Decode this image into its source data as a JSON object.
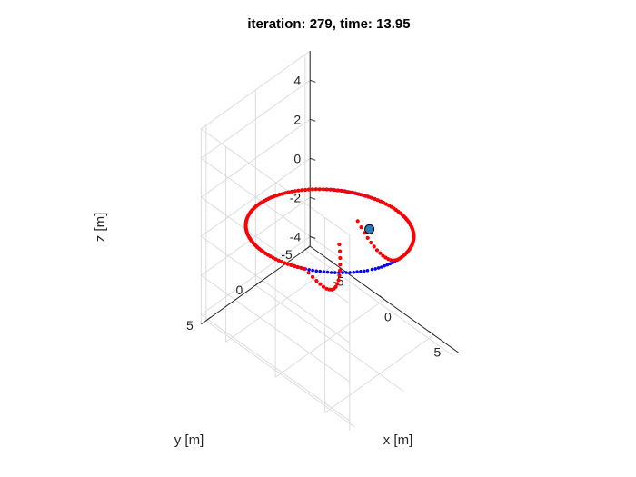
{
  "chart_data": {
    "type": "scatter3d",
    "title": "iteration: 279, time: 13.95",
    "xlabel": "x [m]",
    "ylabel": "y [m]",
    "zlabel": "z [m]",
    "xlim": [
      -7.5,
      7.5
    ],
    "ylim": [
      -5.5,
      5.5
    ],
    "zlim": [
      -4.5,
      5.5
    ],
    "xticks": [
      -5,
      0,
      5
    ],
    "yticks": [
      -5,
      0,
      5
    ],
    "zticks": [
      -4,
      -2,
      0,
      2,
      4
    ],
    "grid": true,
    "colors": {
      "reference": "#0000ff",
      "actual": "#ff0000",
      "vehicle": "#2b7bb9"
    },
    "series": [
      {
        "color": "#0000ff",
        "marker": "dot",
        "x": [],
        "y": [],
        "z": []
      },
      {
        "color": "#ff0000",
        "marker": "dot",
        "x": [],
        "y": [],
        "z": []
      }
    ],
    "vehicle": {
      "x": 6.0,
      "y": 2.0,
      "z": 4.0,
      "color": "#2b7bb9"
    }
  }
}
